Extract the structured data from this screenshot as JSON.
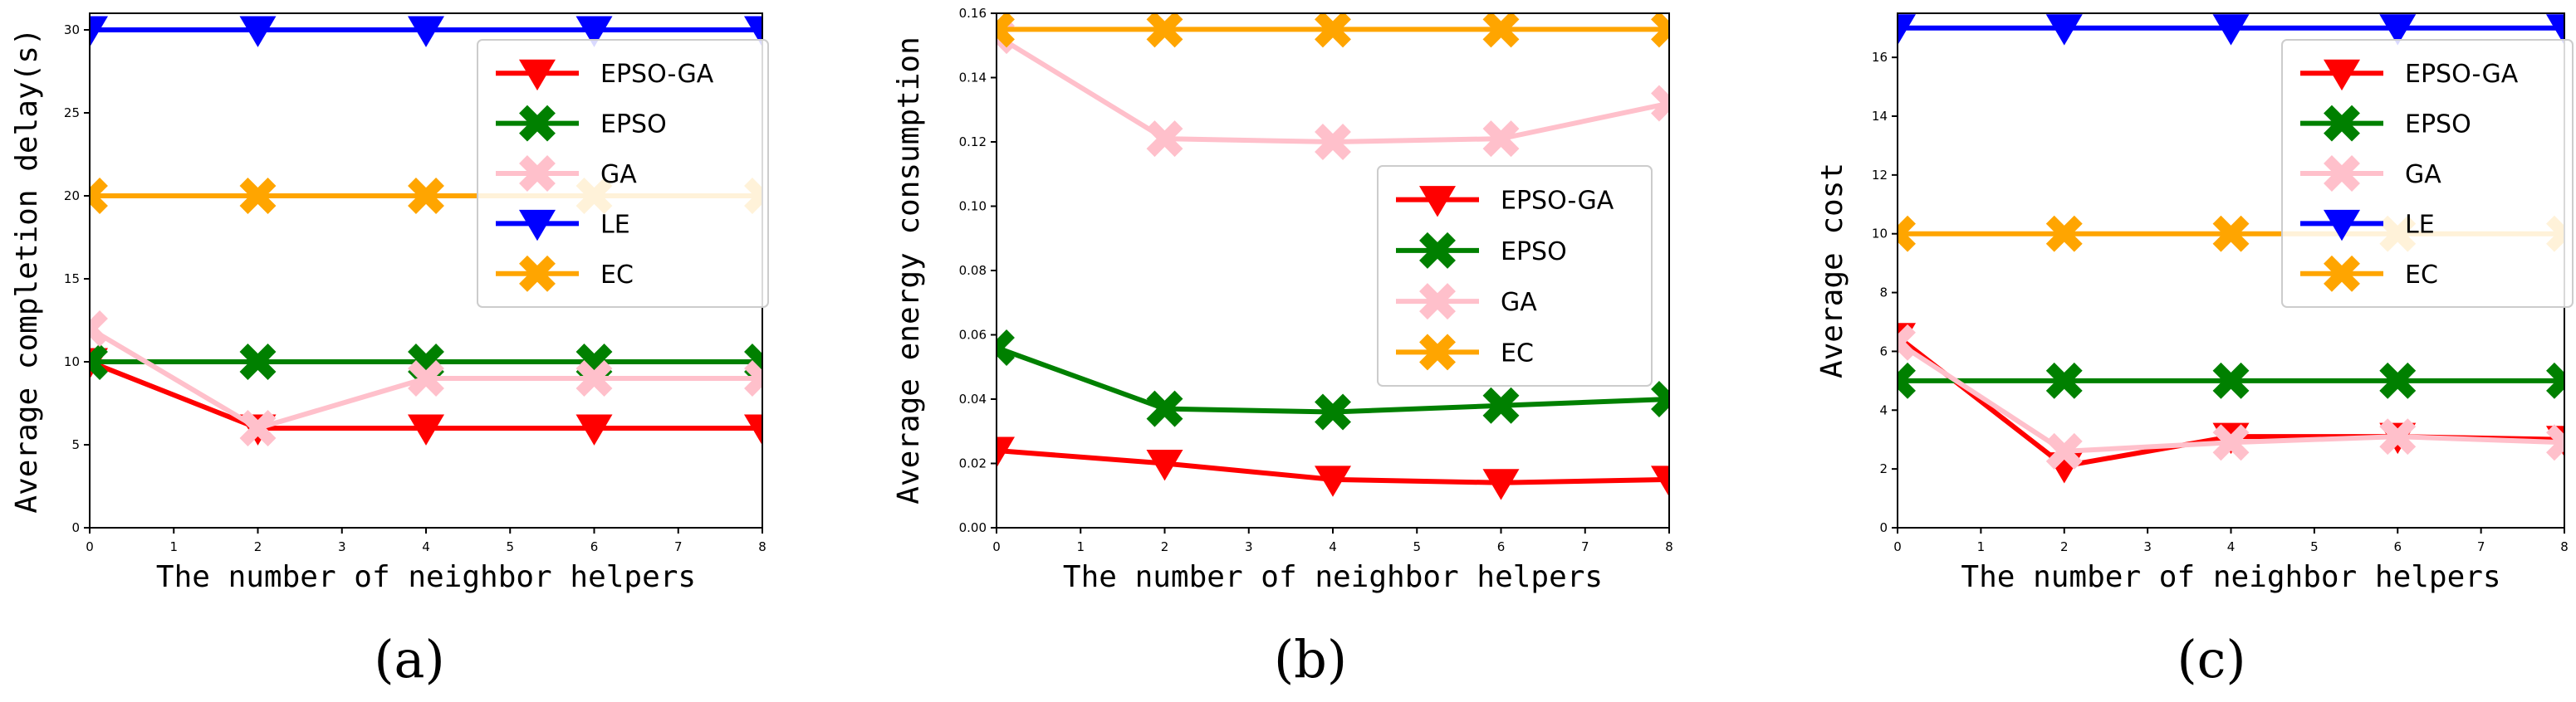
{
  "chart_data": [
    {
      "type": "line",
      "caption": "(a)",
      "xlabel": "The number of neighbor helpers",
      "ylabel": "Average completion delay(s)",
      "xlim": [
        0,
        8
      ],
      "ylim": [
        0,
        31
      ],
      "x_ticks": [
        "0",
        "1",
        "2",
        "3",
        "4",
        "5",
        "6",
        "7",
        "8"
      ],
      "y_ticks": [
        "0",
        "5",
        "10",
        "15",
        "20",
        "25",
        "30"
      ],
      "x": [
        0,
        2,
        4,
        6,
        8
      ],
      "legend_position": "upper-right",
      "series": [
        {
          "name": "EPSO-GA",
          "color": "#ff0000",
          "marker": "triangle-down",
          "values": [
            10,
            6,
            6,
            6,
            6
          ]
        },
        {
          "name": "EPSO",
          "color": "#008000",
          "marker": "x",
          "values": [
            10,
            10,
            10,
            10,
            10
          ]
        },
        {
          "name": "GA",
          "color": "#ffc0cb",
          "marker": "x",
          "values": [
            12,
            6,
            9,
            9,
            9
          ]
        },
        {
          "name": "LE",
          "color": "#0000ff",
          "marker": "triangle-down",
          "values": [
            30,
            30,
            30,
            30,
            30
          ]
        },
        {
          "name": "EC",
          "color": "#ffa500",
          "marker": "x",
          "values": [
            20,
            20,
            20,
            20,
            20
          ]
        }
      ]
    },
    {
      "type": "line",
      "caption": "(b)",
      "xlabel": "The number of neighbor helpers",
      "ylabel": "Average energy consumption",
      "xlim": [
        0,
        8
      ],
      "ylim": [
        0,
        0.16
      ],
      "x_ticks": [
        "0",
        "1",
        "2",
        "3",
        "4",
        "5",
        "6",
        "7",
        "8"
      ],
      "y_ticks": [
        "0.00",
        "0.02",
        "0.04",
        "0.06",
        "0.08",
        "0.10",
        "0.12",
        "0.14",
        "0.16"
      ],
      "x": [
        0,
        2,
        4,
        6,
        8
      ],
      "legend_position": "center-right",
      "series": [
        {
          "name": "EPSO-GA",
          "color": "#ff0000",
          "marker": "triangle-down",
          "values": [
            0.024,
            0.02,
            0.015,
            0.014,
            0.015
          ]
        },
        {
          "name": "EPSO",
          "color": "#008000",
          "marker": "x",
          "values": [
            0.056,
            0.037,
            0.036,
            0.038,
            0.04
          ]
        },
        {
          "name": "GA",
          "color": "#ffc0cb",
          "marker": "x",
          "values": [
            0.153,
            0.121,
            0.12,
            0.121,
            0.132
          ]
        },
        {
          "name": "EC",
          "color": "#ffa500",
          "marker": "x",
          "values": [
            0.155,
            0.155,
            0.155,
            0.155,
            0.155
          ]
        }
      ]
    },
    {
      "type": "line",
      "caption": "(c)",
      "xlabel": "The number of neighbor helpers",
      "ylabel": "Average cost",
      "xlim": [
        0,
        8
      ],
      "ylim": [
        0,
        17.5
      ],
      "x_ticks": [
        "0",
        "1",
        "2",
        "3",
        "4",
        "5",
        "6",
        "7",
        "8"
      ],
      "y_ticks": [
        "0",
        "2",
        "4",
        "6",
        "8",
        "10",
        "12",
        "14",
        "16"
      ],
      "x": [
        0,
        2,
        4,
        6,
        8
      ],
      "legend_position": "upper-right",
      "series": [
        {
          "name": "EPSO-GA",
          "color": "#ff0000",
          "marker": "triangle-down",
          "values": [
            6.5,
            2.1,
            3.1,
            3.1,
            3.0
          ]
        },
        {
          "name": "EPSO",
          "color": "#008000",
          "marker": "x",
          "values": [
            5,
            5,
            5,
            5,
            5
          ]
        },
        {
          "name": "GA",
          "color": "#ffc0cb",
          "marker": "x",
          "values": [
            6.3,
            2.6,
            2.9,
            3.1,
            2.9
          ]
        },
        {
          "name": "LE",
          "color": "#0000ff",
          "marker": "triangle-down",
          "values": [
            17,
            17,
            17,
            17,
            17
          ]
        },
        {
          "name": "EC",
          "color": "#ffa500",
          "marker": "x",
          "values": [
            10,
            10,
            10,
            10,
            10
          ]
        }
      ]
    }
  ]
}
